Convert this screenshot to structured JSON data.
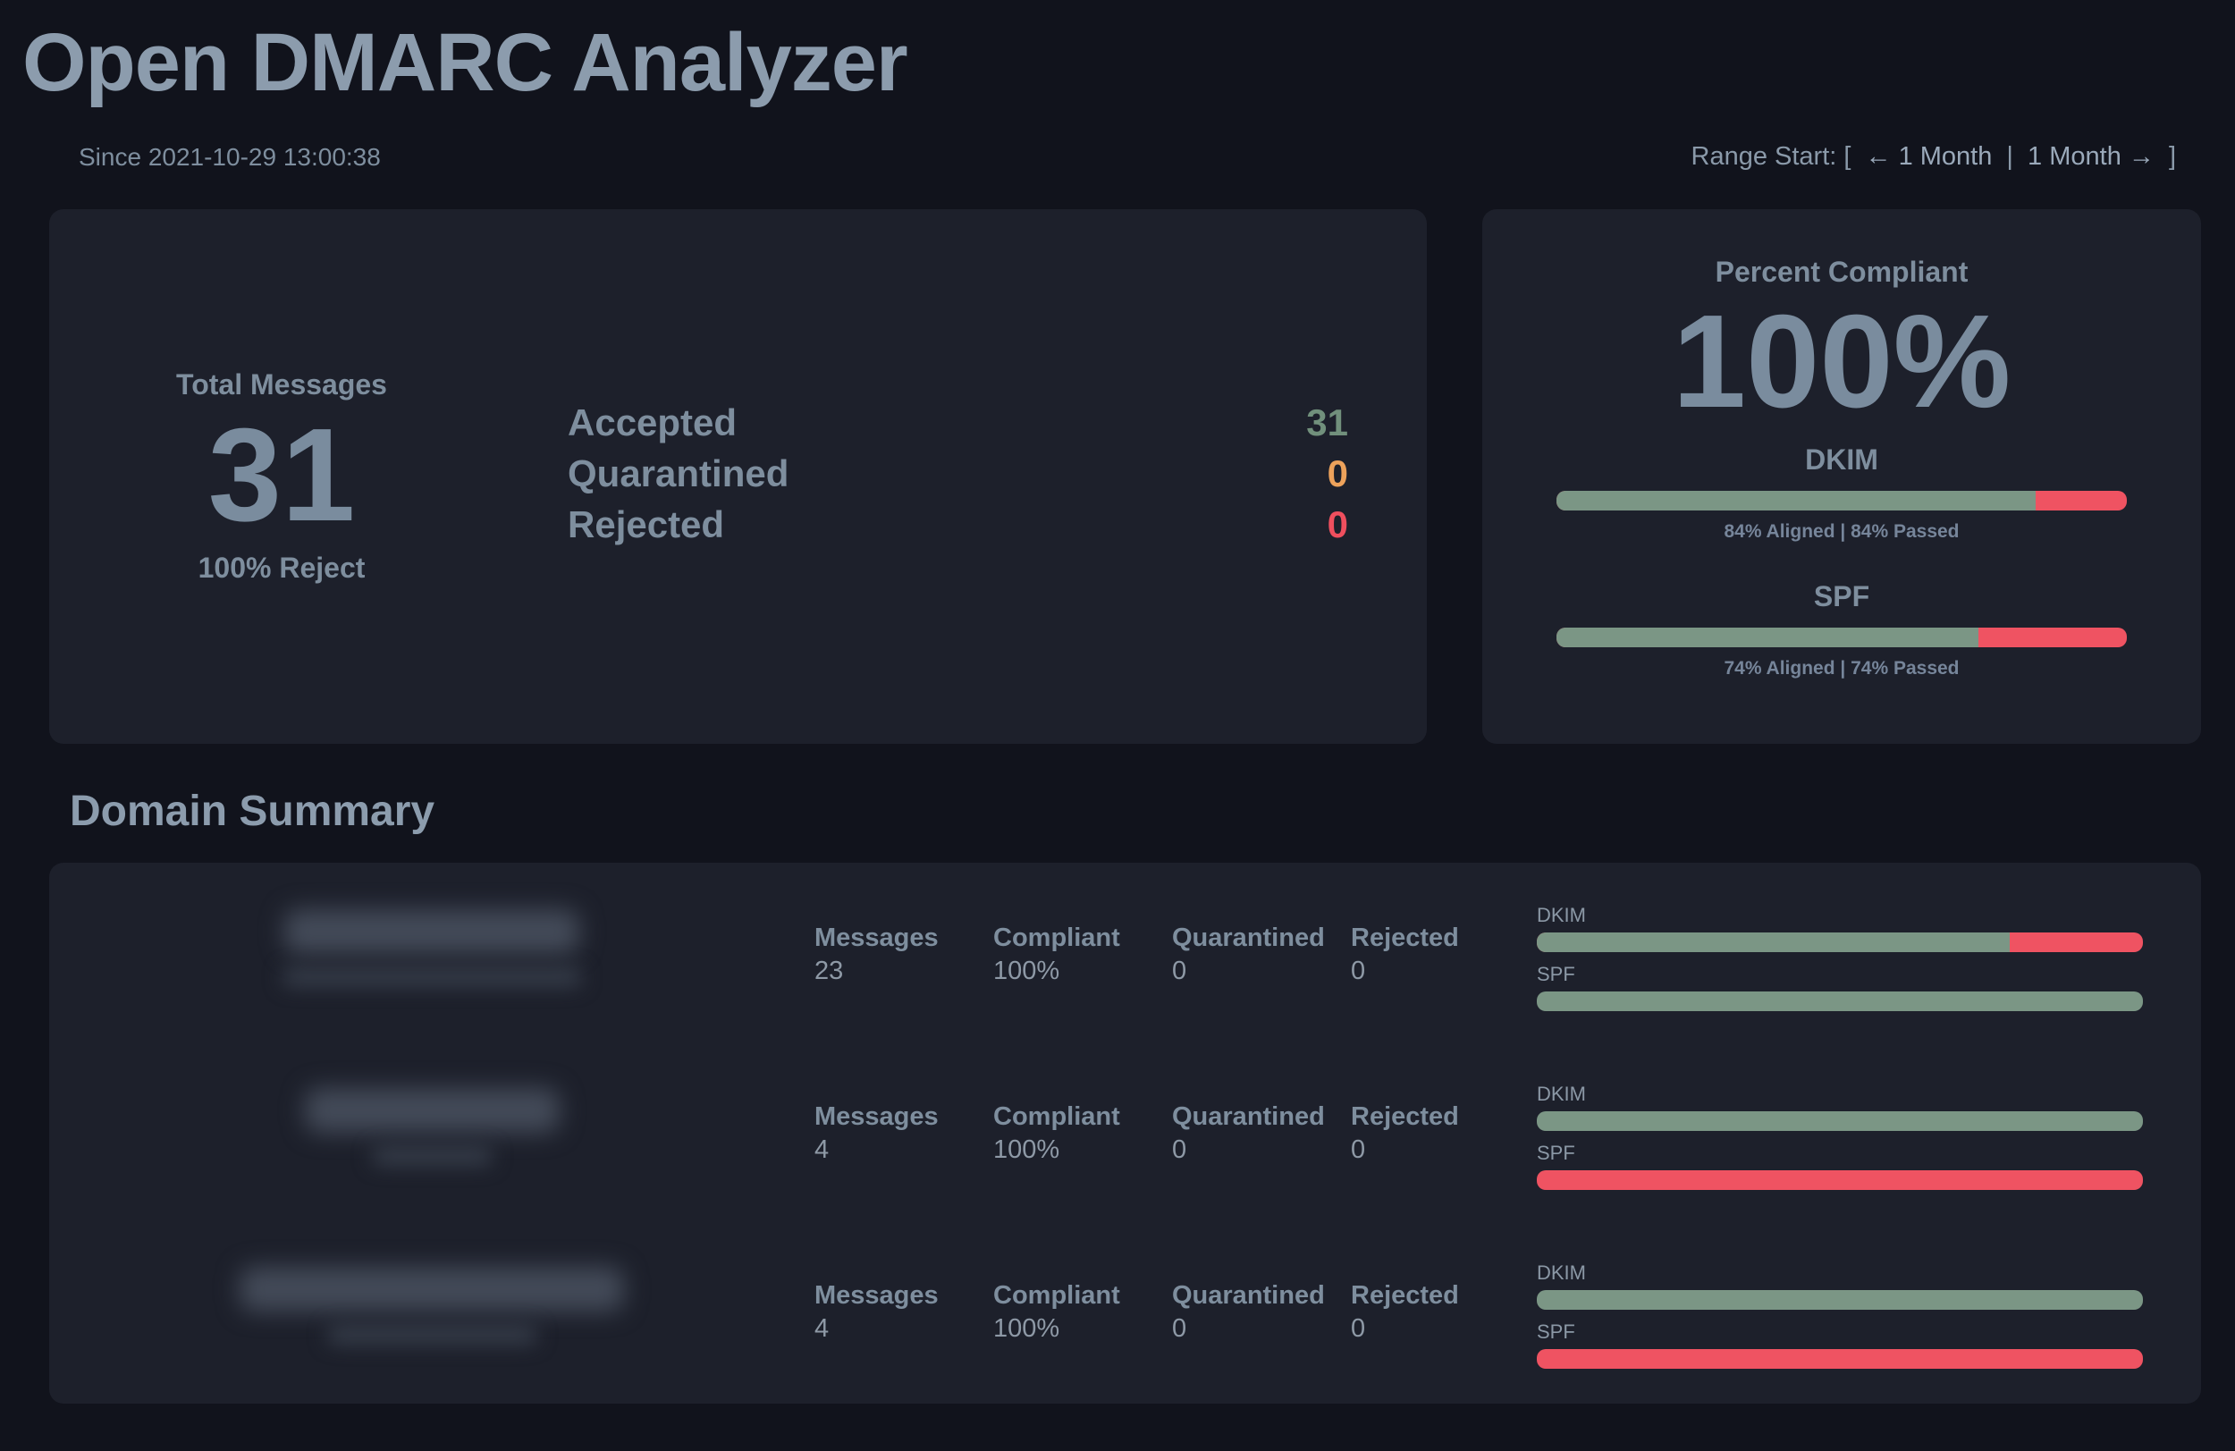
{
  "app": {
    "title": "Open DMARC Analyzer"
  },
  "meta": {
    "since": "Since 2021-10-29 13:00:38",
    "range_label": "Range Start: [",
    "range_prev": "← 1 Month",
    "range_sep": "|",
    "range_next": "1 Month →",
    "range_close": "]"
  },
  "overview": {
    "total_label": "Total Messages",
    "total_value": "31",
    "policy_label": "100% Reject",
    "dispositions": [
      {
        "label": "Accepted",
        "value": "31",
        "color": "#71907c"
      },
      {
        "label": "Quarantined",
        "value": "0",
        "color": "#eda25b"
      },
      {
        "label": "Rejected",
        "value": "0",
        "color": "#ef4f5e"
      }
    ]
  },
  "compliance": {
    "title": "Percent Compliant",
    "value": "100%",
    "metrics": [
      {
        "name": "DKIM",
        "passed_pct": 84,
        "detail": "84% Aligned | 84% Passed"
      },
      {
        "name": "SPF",
        "passed_pct": 74,
        "detail": "74% Aligned | 74% Passed"
      }
    ]
  },
  "domain_summary": {
    "title": "Domain Summary",
    "bar_labels": {
      "dkim": "DKIM",
      "spf": "SPF"
    },
    "rows": [
      {
        "domain_redacted": true,
        "redaction": {
          "name_width": 330,
          "detail_width": 335
        },
        "stats": [
          {
            "label": "Messages",
            "value": "23"
          },
          {
            "label": "Compliant",
            "value": "100%"
          },
          {
            "label": "Quarantined",
            "value": "0"
          },
          {
            "label": "Rejected",
            "value": "0"
          }
        ],
        "dkim_pass_pct": 78,
        "spf_pass_pct": 100
      },
      {
        "domain_redacted": true,
        "redaction": {
          "name_width": 285,
          "detail_width": 135
        },
        "stats": [
          {
            "label": "Messages",
            "value": "4"
          },
          {
            "label": "Compliant",
            "value": "100%"
          },
          {
            "label": "Quarantined",
            "value": "0"
          },
          {
            "label": "Rejected",
            "value": "0"
          }
        ],
        "dkim_pass_pct": 100,
        "spf_pass_pct": 0
      },
      {
        "domain_redacted": true,
        "redaction": {
          "name_width": 430,
          "detail_width": 235
        },
        "stats": [
          {
            "label": "Messages",
            "value": "4"
          },
          {
            "label": "Compliant",
            "value": "100%"
          },
          {
            "label": "Quarantined",
            "value": "0"
          },
          {
            "label": "Rejected",
            "value": "0"
          }
        ],
        "dkim_pass_pct": 100,
        "spf_pass_pct": 0
      }
    ]
  },
  "colors": {
    "pass_green": "#7b9685",
    "fail_red": "#ef5362"
  }
}
